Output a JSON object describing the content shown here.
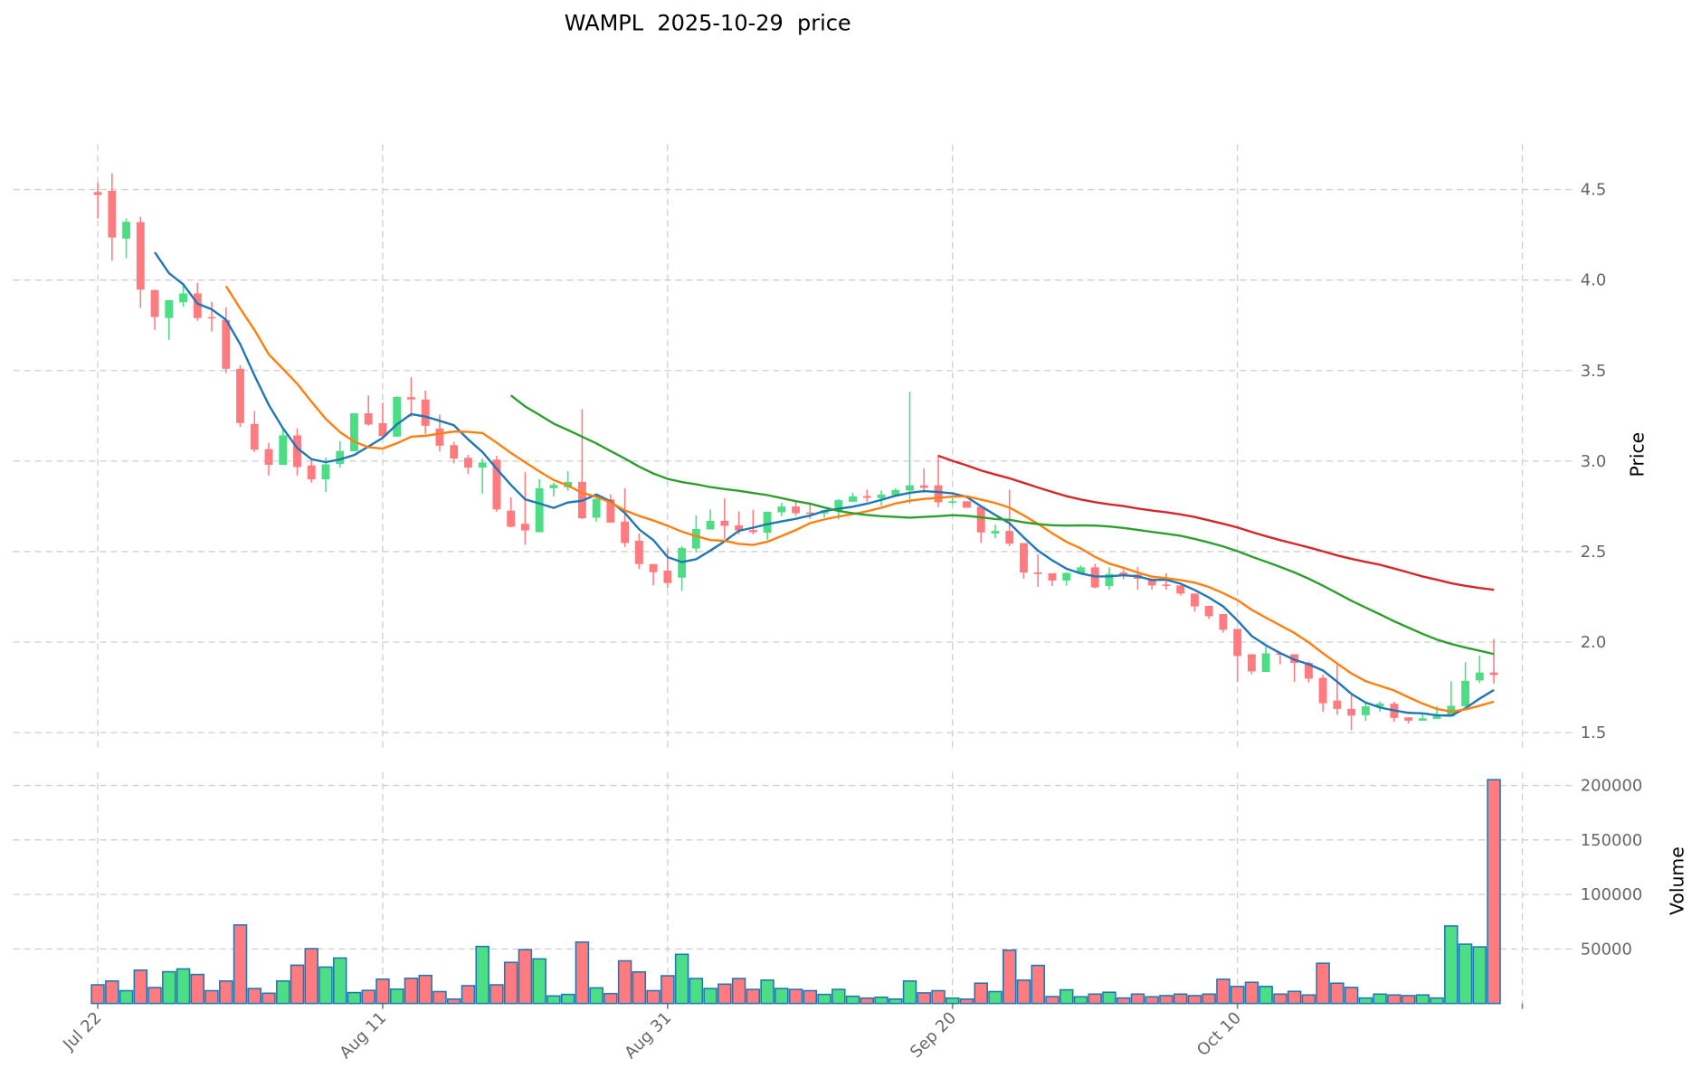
{
  "chart_data": {
    "type": "candlestick",
    "title": "WAMPL  2025-10-29  price",
    "ylabel": "Price",
    "ylabel_lower": "Volume",
    "ylim": [
      1.4,
      4.75
    ],
    "volume_ylim": [
      0,
      212000
    ],
    "grid": true,
    "x_ticks": [
      {
        "index": 0,
        "label": "Jul 22"
      },
      {
        "index": 20,
        "label": "Aug 11"
      },
      {
        "index": 40,
        "label": "Aug 31"
      },
      {
        "index": 60,
        "label": "Sep 20"
      },
      {
        "index": 80,
        "label": "Oct 10"
      },
      {
        "index": 100,
        "label": ""
      }
    ],
    "y_ticks": [
      "1.5",
      "2.0",
      "2.5",
      "3.0",
      "3.5",
      "4.0",
      "4.5"
    ],
    "volume_ticks": [
      "50000",
      "100000",
      "150000",
      "200000"
    ],
    "moving_averages": [
      {
        "window": 5,
        "color": "#1f77b4"
      },
      {
        "window": 10,
        "color": "#ff7f0e"
      },
      {
        "window": 30,
        "color": "#2ca02c"
      },
      {
        "window": 60,
        "color": "#d62728"
      }
    ],
    "up_color": "#4bde85",
    "down_color": "#ff7b7f",
    "volume_edge_color": "#1f77b4",
    "ohlc": [
      [
        4.486,
        4.537,
        4.34,
        4.47
      ],
      [
        4.493,
        4.59,
        4.106,
        4.235
      ],
      [
        4.229,
        4.34,
        4.12,
        4.322
      ],
      [
        4.32,
        4.35,
        3.845,
        3.947
      ],
      [
        3.945,
        3.945,
        3.724,
        3.796
      ],
      [
        3.79,
        3.89,
        3.67,
        3.889
      ],
      [
        3.877,
        3.984,
        3.853,
        3.926
      ],
      [
        3.926,
        3.984,
        3.775,
        3.79
      ],
      [
        3.795,
        3.88,
        3.716,
        3.79
      ],
      [
        3.78,
        3.85,
        3.485,
        3.51
      ],
      [
        3.51,
        3.53,
        3.187,
        3.21
      ],
      [
        3.205,
        3.276,
        3.05,
        3.063
      ],
      [
        3.066,
        3.1,
        2.92,
        2.979
      ],
      [
        2.979,
        3.18,
        2.979,
        3.142
      ],
      [
        3.142,
        3.18,
        2.92,
        2.967
      ],
      [
        2.976,
        3.004,
        2.88,
        2.899
      ],
      [
        2.899,
        3.02,
        2.83,
        2.982
      ],
      [
        2.984,
        3.11,
        2.964,
        3.056
      ],
      [
        3.054,
        3.264,
        3.054,
        3.264
      ],
      [
        3.264,
        3.363,
        3.195,
        3.202
      ],
      [
        3.209,
        3.322,
        3.13,
        3.138
      ],
      [
        3.135,
        3.36,
        3.135,
        3.354
      ],
      [
        3.353,
        3.463,
        3.244,
        3.34
      ],
      [
        3.34,
        3.39,
        3.15,
        3.195
      ],
      [
        3.18,
        3.257,
        3.053,
        3.085
      ],
      [
        3.088,
        3.106,
        2.987,
        3.014
      ],
      [
        3.018,
        3.034,
        2.927,
        2.964
      ],
      [
        2.964,
        3.014,
        2.82,
        2.992
      ],
      [
        3.008,
        3.028,
        2.72,
        2.733
      ],
      [
        2.726,
        2.8,
        2.635,
        2.637
      ],
      [
        2.654,
        2.94,
        2.537,
        2.617
      ],
      [
        2.607,
        2.9,
        2.607,
        2.85
      ],
      [
        2.85,
        2.88,
        2.805,
        2.868
      ],
      [
        2.855,
        2.944,
        2.835,
        2.885
      ],
      [
        2.885,
        3.287,
        2.68,
        2.684
      ],
      [
        2.687,
        2.8,
        2.665,
        2.791
      ],
      [
        2.788,
        2.816,
        2.66,
        2.66
      ],
      [
        2.666,
        2.85,
        2.525,
        2.547
      ],
      [
        2.56,
        2.6,
        2.403,
        2.431
      ],
      [
        2.431,
        2.431,
        2.314,
        2.386
      ],
      [
        2.395,
        2.518,
        2.3,
        2.326
      ],
      [
        2.356,
        2.53,
        2.283,
        2.52
      ],
      [
        2.517,
        2.7,
        2.495,
        2.625
      ],
      [
        2.622,
        2.732,
        2.622,
        2.67
      ],
      [
        2.67,
        2.794,
        2.57,
        2.642
      ],
      [
        2.645,
        2.722,
        2.595,
        2.617
      ],
      [
        2.619,
        2.732,
        2.595,
        2.607
      ],
      [
        2.604,
        2.72,
        2.565,
        2.72
      ],
      [
        2.717,
        2.77,
        2.696,
        2.749
      ],
      [
        2.749,
        2.78,
        2.696,
        2.712
      ],
      [
        2.716,
        2.76,
        2.68,
        2.709
      ],
      [
        2.711,
        2.73,
        2.688,
        2.728
      ],
      [
        2.725,
        2.79,
        2.678,
        2.784
      ],
      [
        2.775,
        2.825,
        2.775,
        2.805
      ],
      [
        2.807,
        2.842,
        2.775,
        2.797
      ],
      [
        2.795,
        2.837,
        2.753,
        2.815
      ],
      [
        2.812,
        2.85,
        2.812,
        2.84
      ],
      [
        2.837,
        3.383,
        2.765,
        2.866
      ],
      [
        2.866,
        2.96,
        2.825,
        2.852
      ],
      [
        2.866,
        3.035,
        2.745,
        2.772
      ],
      [
        2.77,
        2.795,
        2.762,
        2.778
      ],
      [
        2.778,
        2.778,
        2.742,
        2.742
      ],
      [
        2.748,
        2.748,
        2.547,
        2.606
      ],
      [
        2.6,
        2.648,
        2.574,
        2.614
      ],
      [
        2.614,
        2.842,
        2.53,
        2.544
      ],
      [
        2.547,
        2.547,
        2.35,
        2.384
      ],
      [
        2.385,
        2.485,
        2.305,
        2.376
      ],
      [
        2.38,
        2.38,
        2.31,
        2.34
      ],
      [
        2.34,
        2.385,
        2.312,
        2.382
      ],
      [
        2.38,
        2.423,
        2.38,
        2.413
      ],
      [
        2.413,
        2.432,
        2.297,
        2.302
      ],
      [
        2.31,
        2.413,
        2.29,
        2.377
      ],
      [
        2.385,
        2.402,
        2.347,
        2.373
      ],
      [
        2.373,
        2.415,
        2.29,
        2.35
      ],
      [
        2.35,
        2.35,
        2.29,
        2.313
      ],
      [
        2.318,
        2.38,
        2.29,
        2.31
      ],
      [
        2.313,
        2.313,
        2.257,
        2.268
      ],
      [
        2.268,
        2.268,
        2.168,
        2.197
      ],
      [
        2.2,
        2.2,
        2.127,
        2.143
      ],
      [
        2.155,
        2.155,
        2.052,
        2.068
      ],
      [
        2.073,
        2.073,
        1.78,
        1.923
      ],
      [
        1.933,
        1.933,
        1.822,
        1.838
      ],
      [
        1.835,
        1.977,
        1.835,
        1.938
      ],
      [
        1.938,
        1.94,
        1.877,
        1.93
      ],
      [
        1.933,
        1.933,
        1.78,
        1.885
      ],
      [
        1.885,
        1.893,
        1.777,
        1.798
      ],
      [
        1.803,
        1.82,
        1.615,
        1.662
      ],
      [
        1.677,
        1.875,
        1.598,
        1.631
      ],
      [
        1.631,
        1.707,
        1.513,
        1.594
      ],
      [
        1.596,
        1.665,
        1.564,
        1.645
      ],
      [
        1.643,
        1.673,
        1.614,
        1.66
      ],
      [
        1.66,
        1.67,
        1.559,
        1.581
      ],
      [
        1.584,
        1.586,
        1.55,
        1.566
      ],
      [
        1.566,
        1.603,
        1.566,
        1.579
      ],
      [
        1.576,
        1.646,
        1.576,
        1.593
      ],
      [
        1.589,
        1.783,
        1.589,
        1.648
      ],
      [
        1.645,
        1.889,
        1.645,
        1.786
      ],
      [
        1.788,
        1.926,
        1.774,
        1.832
      ],
      [
        1.832,
        2.017,
        1.771,
        1.818
      ]
    ],
    "volume": [
      17100,
      20600,
      11700,
      30600,
      14600,
      29100,
      31700,
      26600,
      11700,
      20600,
      72000,
      13700,
      9400,
      20600,
      35100,
      50300,
      33400,
      41700,
      10000,
      12000,
      22300,
      13100,
      23100,
      25700,
      10900,
      4000,
      16300,
      52300,
      17100,
      37700,
      49400,
      40900,
      6900,
      8300,
      56300,
      14300,
      9100,
      39100,
      28900,
      11700,
      25400,
      45100,
      22900,
      13700,
      17700,
      22900,
      12900,
      21400,
      13700,
      12900,
      11700,
      8300,
      12900,
      6600,
      4900,
      5700,
      4000,
      20600,
      9700,
      11700,
      4900,
      4000,
      18600,
      10900,
      48900,
      21400,
      34900,
      6300,
      12500,
      6100,
      8600,
      10300,
      5000,
      8600,
      6100,
      7200,
      8600,
      7200,
      8600,
      22200,
      15600,
      19400,
      15600,
      8600,
      11100,
      7800,
      36900,
      18600,
      14700,
      5000,
      8600,
      7800,
      7200,
      7800,
      5000,
      71100,
      54400,
      51900,
      205300
    ]
  }
}
